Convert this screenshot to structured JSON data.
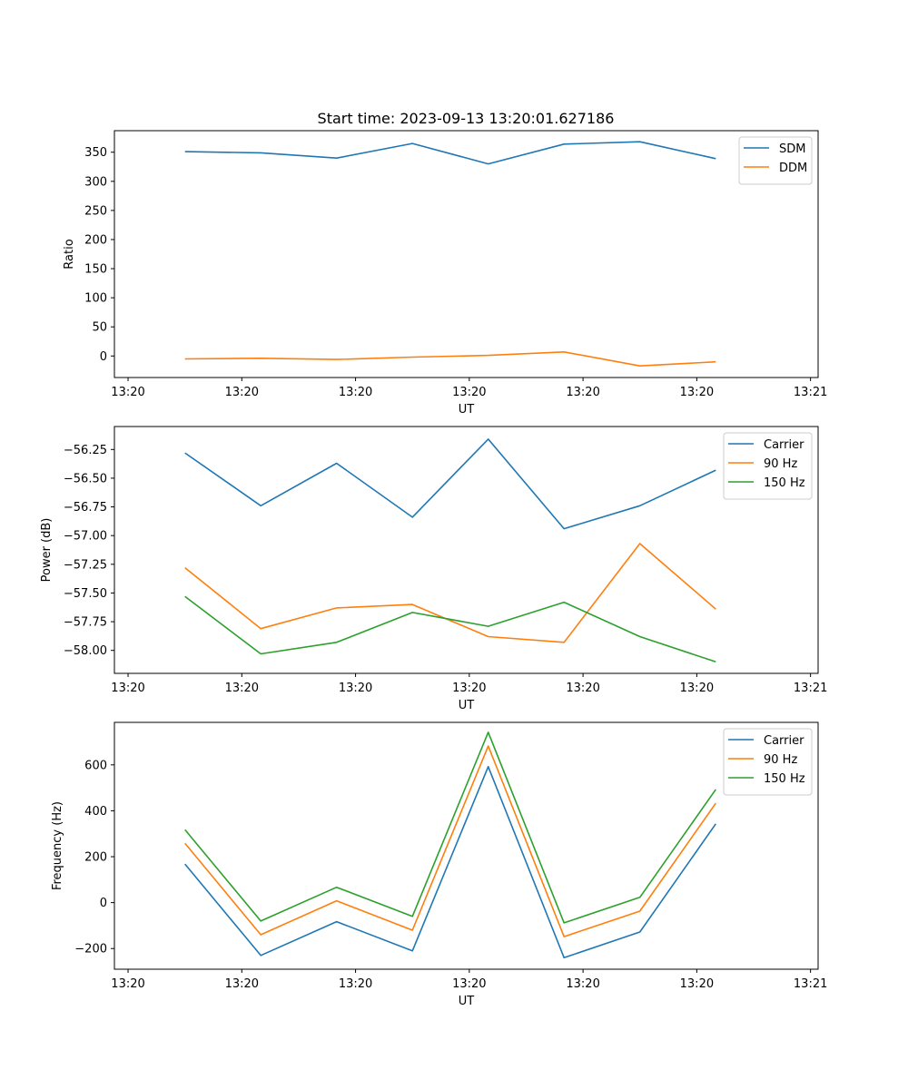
{
  "figure_title": "Start time: 2023-09-13 13:20:01.627186",
  "colors": {
    "blue": "#1f77b4",
    "orange": "#ff7f0e",
    "green": "#2ca02c"
  },
  "chart_data": [
    {
      "type": "line",
      "title": "Start time: 2023-09-13 13:20:01.627186",
      "xlabel": "UT",
      "ylabel": "Ratio",
      "xlim": [
        -0.18,
        9.1
      ],
      "ylim": [
        -37,
        387
      ],
      "x": [
        0.75,
        1.75,
        2.75,
        3.75,
        4.75,
        5.75,
        6.75,
        7.75
      ],
      "xticks": [
        0,
        1.5,
        3,
        4.5,
        6,
        7.5,
        9
      ],
      "xtick_labels": [
        "13:20",
        "13:20",
        "13:20",
        "13:20",
        "13:20",
        "13:20",
        "13:21"
      ],
      "yticks": [
        0,
        50,
        100,
        150,
        200,
        250,
        300,
        350
      ],
      "ytick_labels": [
        "0",
        "50",
        "100",
        "150",
        "200",
        "250",
        "300",
        "350"
      ],
      "legend_loc": "top-right",
      "series": [
        {
          "name": "SDM",
          "color": "#1f77b4",
          "values": [
            351,
            349,
            340,
            365,
            330,
            364,
            368,
            339
          ]
        },
        {
          "name": "DDM",
          "color": "#ff7f0e",
          "values": [
            -5,
            -4,
            -6,
            -2,
            1,
            7,
            -17,
            -10
          ]
        }
      ]
    },
    {
      "type": "line",
      "title": "",
      "xlabel": "UT",
      "ylabel": "Power (dB)",
      "xlim": [
        -0.18,
        9.1
      ],
      "ylim": [
        -58.2,
        -56.05
      ],
      "x": [
        0.75,
        1.75,
        2.75,
        3.75,
        4.75,
        5.75,
        6.75,
        7.75
      ],
      "xticks": [
        0,
        1.5,
        3,
        4.5,
        6,
        7.5,
        9
      ],
      "xtick_labels": [
        "13:20",
        "13:20",
        "13:20",
        "13:20",
        "13:20",
        "13:20",
        "13:21"
      ],
      "yticks": [
        -58.0,
        -57.75,
        -57.5,
        -57.25,
        -57.0,
        -56.75,
        -56.5,
        -56.25
      ],
      "ytick_labels": [
        "−58.00",
        "−57.75",
        "−57.50",
        "−57.25",
        "−57.00",
        "−56.75",
        "−56.50",
        "−56.25"
      ],
      "legend_loc": "top-right",
      "series": [
        {
          "name": "Carrier",
          "color": "#1f77b4",
          "values": [
            -56.28,
            -56.74,
            -56.37,
            -56.84,
            -56.16,
            -56.94,
            -56.74,
            -56.43
          ]
        },
        {
          "name": "90 Hz",
          "color": "#ff7f0e",
          "values": [
            -57.28,
            -57.81,
            -57.63,
            -57.6,
            -57.88,
            -57.93,
            -57.07,
            -57.64
          ]
        },
        {
          "name": "150 Hz",
          "color": "#2ca02c",
          "values": [
            -57.53,
            -58.03,
            -57.93,
            -57.67,
            -57.79,
            -57.58,
            -57.88,
            -58.1
          ]
        }
      ]
    },
    {
      "type": "line",
      "title": "",
      "xlabel": "UT",
      "ylabel": "Frequency (Hz)",
      "xlim": [
        -0.18,
        9.1
      ],
      "ylim": [
        -290,
        785
      ],
      "x": [
        0.75,
        1.75,
        2.75,
        3.75,
        4.75,
        5.75,
        6.75,
        7.75
      ],
      "xticks": [
        0,
        1.5,
        3,
        4.5,
        6,
        7.5,
        9
      ],
      "xtick_labels": [
        "13:20",
        "13:20",
        "13:20",
        "13:20",
        "13:20",
        "13:20",
        "13:21"
      ],
      "yticks": [
        -200,
        0,
        200,
        400,
        600
      ],
      "ytick_labels": [
        "−200",
        "0",
        "200",
        "400",
        "600"
      ],
      "legend_loc": "top-right",
      "series": [
        {
          "name": "Carrier",
          "color": "#1f77b4",
          "values": [
            168,
            -230,
            -83,
            -210,
            592,
            -240,
            -128,
            343
          ]
        },
        {
          "name": "90 Hz",
          "color": "#ff7f0e",
          "values": [
            258,
            -140,
            8,
            -120,
            682,
            -148,
            -37,
            433
          ]
        },
        {
          "name": "150 Hz",
          "color": "#2ca02c",
          "values": [
            318,
            -80,
            67,
            -60,
            742,
            -88,
            23,
            493
          ]
        }
      ]
    }
  ]
}
